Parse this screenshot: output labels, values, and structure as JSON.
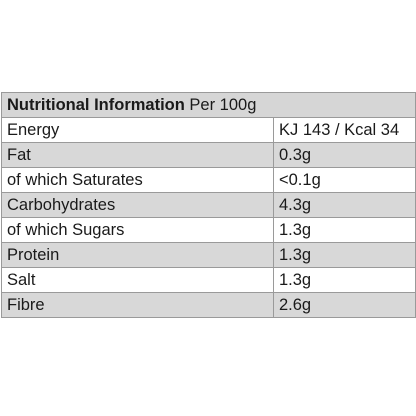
{
  "table": {
    "title_bold": "Nutritional Information",
    "title_rest": " Per 100g",
    "rows": [
      {
        "label": "Energy",
        "value": "KJ 143 / Kcal 34"
      },
      {
        "label": "Fat",
        "value": "0.3g"
      },
      {
        "label": "of which Saturates",
        "value": "<0.1g"
      },
      {
        "label": "Carbohydrates",
        "value": "4.3g"
      },
      {
        "label": "of which Sugars",
        "value": "1.3g"
      },
      {
        "label": "Protein",
        "value": "1.3g"
      },
      {
        "label": "Salt",
        "value": "1.3g"
      },
      {
        "label": "Fibre",
        "value": "2.6g"
      }
    ]
  },
  "colors": {
    "header_bg": "#d6d6d6",
    "stripe_bg": "#d8d8d8",
    "border": "#9a9a9a"
  }
}
